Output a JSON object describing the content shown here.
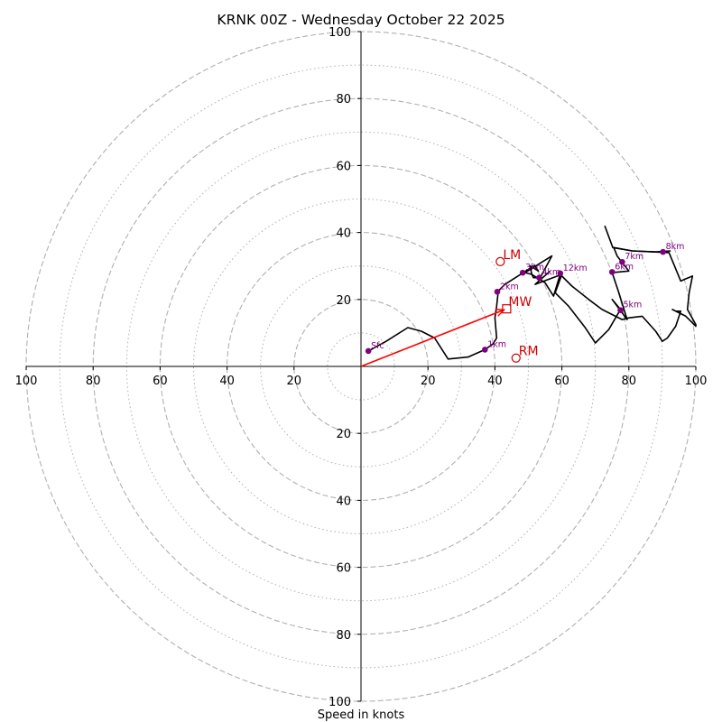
{
  "chart_data": {
    "type": "hodograph",
    "title": "KRNK 00Z - Wednesday October 22 2025",
    "xlabel": "Speed in knots",
    "xlim": [
      -100,
      100
    ],
    "ylim": [
      -100,
      100
    ],
    "ring_major": [
      20,
      40,
      60,
      80,
      100
    ],
    "ring_minor": [
      10,
      30,
      50,
      70,
      90
    ],
    "x_ticks": [
      {
        "v": -100,
        "label": "100"
      },
      {
        "v": -80,
        "label": "80"
      },
      {
        "v": -60,
        "label": "60"
      },
      {
        "v": -40,
        "label": "40"
      },
      {
        "v": -20,
        "label": "20"
      },
      {
        "v": 20,
        "label": "20"
      },
      {
        "v": 40,
        "label": "40"
      },
      {
        "v": 60,
        "label": "60"
      },
      {
        "v": 80,
        "label": "80"
      },
      {
        "v": 100,
        "label": "100"
      }
    ],
    "y_ticks": [
      {
        "v": 100,
        "label": "100"
      },
      {
        "v": 80,
        "label": "80"
      },
      {
        "v": 60,
        "label": "60"
      },
      {
        "v": 40,
        "label": "40"
      },
      {
        "v": 20,
        "label": "20"
      },
      {
        "v": -20,
        "label": "20"
      },
      {
        "v": -40,
        "label": "40"
      },
      {
        "v": -60,
        "label": "60"
      },
      {
        "v": -80,
        "label": "80"
      },
      {
        "v": -100,
        "label": "100"
      }
    ],
    "hodograph_trace": [
      [
        2.2,
        4.6
      ],
      [
        7.5,
        7.5
      ],
      [
        14,
        11.6
      ],
      [
        18,
        10.5
      ],
      [
        22,
        8.5
      ],
      [
        26,
        2.2
      ],
      [
        32,
        2.8
      ],
      [
        37,
        5
      ],
      [
        39.5,
        6.8
      ],
      [
        40.5,
        8.5
      ],
      [
        40,
        14.5
      ],
      [
        40.5,
        18
      ],
      [
        41,
        22.5
      ],
      [
        43,
        24.5
      ],
      [
        48.5,
        28
      ],
      [
        51.8,
        30.2
      ],
      [
        53,
        28.5
      ],
      [
        50.5,
        30
      ],
      [
        51,
        27.5
      ],
      [
        51.5,
        26.5
      ],
      [
        53.5,
        26.5
      ],
      [
        57,
        33
      ],
      [
        49,
        28
      ],
      [
        51,
        27.5
      ],
      [
        55,
        25
      ],
      [
        57.5,
        21
      ],
      [
        59.5,
        27.5
      ],
      [
        63,
        24
      ],
      [
        68,
        20
      ],
      [
        72,
        17
      ],
      [
        78,
        14
      ],
      [
        80,
        14.5
      ],
      [
        84,
        15
      ],
      [
        88,
        10.5
      ],
      [
        90,
        7.5
      ],
      [
        91.5,
        8.5
      ],
      [
        94,
        12
      ],
      [
        95.5,
        16.5
      ],
      [
        94,
        16.5
      ],
      [
        93,
        17
      ],
      [
        97,
        15
      ],
      [
        100,
        12
      ],
      [
        100,
        12.5
      ],
      [
        97.5,
        17
      ],
      [
        98,
        22
      ],
      [
        99,
        27
      ],
      [
        95.5,
        25.5
      ],
      [
        92,
        34
      ],
      [
        81,
        34.5
      ],
      [
        75.5,
        35.5
      ],
      [
        76.5,
        33
      ],
      [
        78,
        31
      ],
      [
        80,
        28.5
      ],
      [
        75,
        28
      ],
      [
        77,
        22
      ],
      [
        79.5,
        14
      ],
      [
        75,
        20
      ],
      [
        77.5,
        17
      ],
      [
        74,
        11
      ],
      [
        70,
        7
      ],
      [
        67,
        11.5
      ],
      [
        62,
        18
      ],
      [
        58,
        22
      ],
      [
        60,
        27.5
      ],
      [
        52,
        24.5
      ],
      [
        56.5,
        28.5
      ]
    ],
    "upper_trace": [
      [
        72.8,
        42
      ],
      [
        75.2,
        35.5
      ],
      [
        81,
        34.5
      ],
      [
        88,
        34.2
      ],
      [
        92.5,
        34.5
      ]
    ],
    "height_points": [
      {
        "label": "Sfc",
        "u": 2.2,
        "v": 4.6
      },
      {
        "label": "1km",
        "u": 37,
        "v": 5
      },
      {
        "label": "2km",
        "u": 40.7,
        "v": 22.3
      },
      {
        "label": "3km",
        "u": 48.3,
        "v": 28
      },
      {
        "label": "4km",
        "u": 53.2,
        "v": 26.5
      },
      {
        "label": "5km",
        "u": 77.5,
        "v": 16.8
      },
      {
        "label": "6km",
        "u": 75,
        "v": 28.2
      },
      {
        "label": "7km",
        "u": 78,
        "v": 31.2
      },
      {
        "label": "8km",
        "u": 90.2,
        "v": 34.2
      },
      {
        "label": "12km",
        "u": 59.5,
        "v": 27.8
      }
    ],
    "storm_motion": {
      "mean_wind": {
        "label": "MW",
        "u": 43.5,
        "v": 17.2
      },
      "left_mover": {
        "label": "LM",
        "u": 41.6,
        "v": 31.3
      },
      "right_mover": {
        "label": "RM",
        "u": 46.3,
        "v": 2.5
      }
    },
    "colors": {
      "trace": "#000000",
      "height_points": "#800080",
      "storm_motion": "#cc0000",
      "mean_wind_vector": "#ff0000",
      "rings": "#b0b0b0"
    }
  }
}
